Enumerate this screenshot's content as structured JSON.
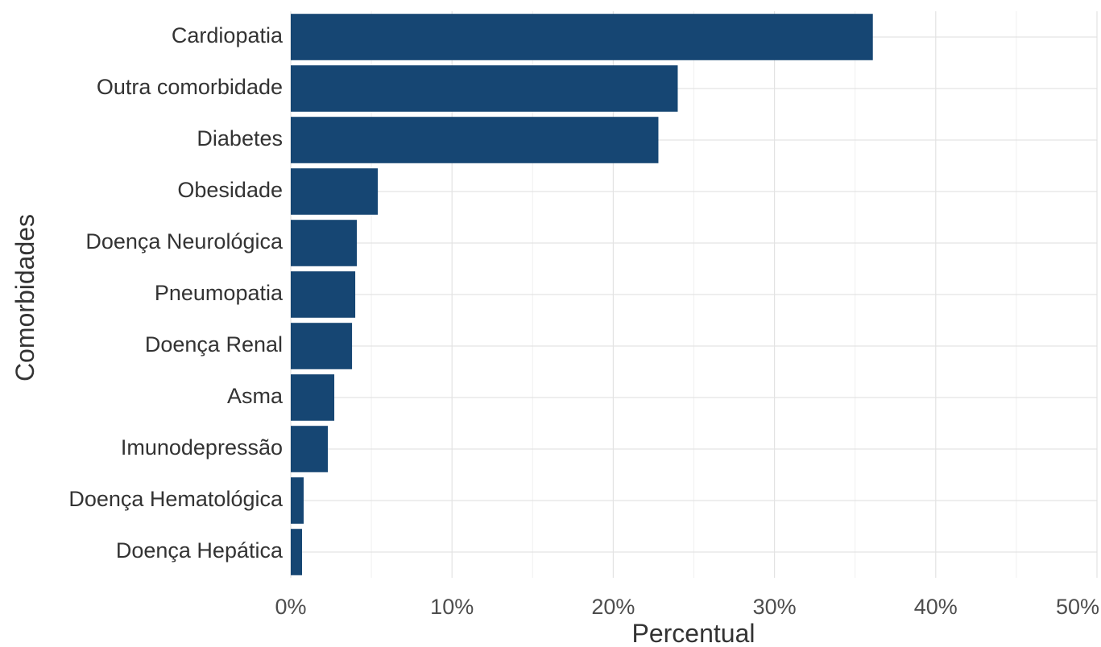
{
  "chart_data": {
    "type": "bar",
    "orientation": "horizontal",
    "title": "",
    "xlabel": "Percentual",
    "ylabel": "Comorbidades",
    "categories": [
      "Cardiopatia",
      "Outra comorbidade",
      "Diabetes",
      "Obesidade",
      "Doença Neurológica",
      "Pneumopatia",
      "Doença Renal",
      "Asma",
      "Imunodepressão",
      "Doença Hematológica",
      "Doença Hepática"
    ],
    "values": [
      36.1,
      24.0,
      22.8,
      5.4,
      4.1,
      4.0,
      3.8,
      2.7,
      2.3,
      0.8,
      0.7
    ],
    "value_unit": "%",
    "xlim": [
      0,
      50
    ],
    "x_ticks": [
      0,
      10,
      20,
      30,
      40,
      50
    ],
    "x_tick_labels": [
      "0%",
      "10%",
      "20%",
      "30%",
      "40%",
      "50%"
    ],
    "grid": true,
    "legend": "none",
    "colors": {
      "bar": "#164673",
      "grid_major": "#e3e3e3",
      "grid_minor": "#f0f0f0",
      "text": "#333333"
    }
  }
}
